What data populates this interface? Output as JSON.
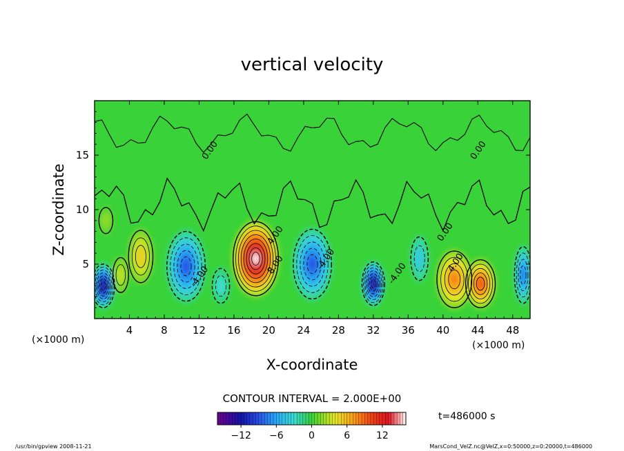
{
  "chart_data": {
    "type": "heatmap",
    "title": "vertical velocity",
    "xlabel": "X-coordinate",
    "ylabel": "Z-coordinate",
    "x_unit_left": "(×1000 m)",
    "x_unit_right": "(×1000 m)",
    "xlim": [
      0,
      50
    ],
    "ylim": [
      0,
      20
    ],
    "x_ticks": [
      4,
      8,
      12,
      16,
      20,
      24,
      28,
      32,
      36,
      40,
      44,
      48
    ],
    "y_ticks": [
      5,
      10,
      15
    ],
    "contour_interval_text": "CONTOUR INTERVAL = 2.000E+00",
    "time_text": "t=486000 s",
    "colorbar": {
      "min": -16,
      "max": 16,
      "ticks": [
        -12,
        -6,
        0,
        6,
        12
      ]
    },
    "contour_labels": [
      {
        "x": 13.5,
        "z": 15.3,
        "text": "0.00"
      },
      {
        "x": 21.0,
        "z": 7.5,
        "text": "4.00"
      },
      {
        "x": 21.0,
        "z": 4.8,
        "text": "8.00"
      },
      {
        "x": 12.3,
        "z": 3.7,
        "text": "-4.00"
      },
      {
        "x": 26.8,
        "z": 5.3,
        "text": "-4.00"
      },
      {
        "x": 35.0,
        "z": 4.0,
        "text": "-4.00"
      },
      {
        "x": 40.5,
        "z": 7.8,
        "text": "0.00"
      },
      {
        "x": 41.7,
        "z": 5.0,
        "text": "4.00"
      },
      {
        "x": 44.3,
        "z": 15.3,
        "text": "0.00"
      }
    ],
    "features": [
      {
        "x": 18.5,
        "z": 5.5,
        "value": 16
      },
      {
        "x": 1.0,
        "z": 3.0,
        "value": -14
      },
      {
        "x": 32.0,
        "z": 3.2,
        "value": -14
      },
      {
        "x": 10.5,
        "z": 4.8,
        "value": -9
      },
      {
        "x": 25.0,
        "z": 5.0,
        "value": -9
      },
      {
        "x": 41.3,
        "z": 3.6,
        "value": 8
      },
      {
        "x": 44.3,
        "z": 3.2,
        "value": 10
      },
      {
        "x": 5.3,
        "z": 5.7,
        "value": 5
      },
      {
        "x": 3.0,
        "z": 4.0,
        "value": 3
      },
      {
        "x": 1.3,
        "z": 9.0,
        "value": 2
      },
      {
        "x": 14.5,
        "z": 3.0,
        "value": -3
      },
      {
        "x": 37.3,
        "z": 5.5,
        "value": -4
      },
      {
        "x": 49.2,
        "z": 4.0,
        "value": -8
      }
    ]
  },
  "footer": {
    "left": "/usr/bin/gpview  2008-11-21",
    "right": "MarsCond_VelZ.nc@VelZ,x=0:50000,z=0:20000,t=486000"
  }
}
